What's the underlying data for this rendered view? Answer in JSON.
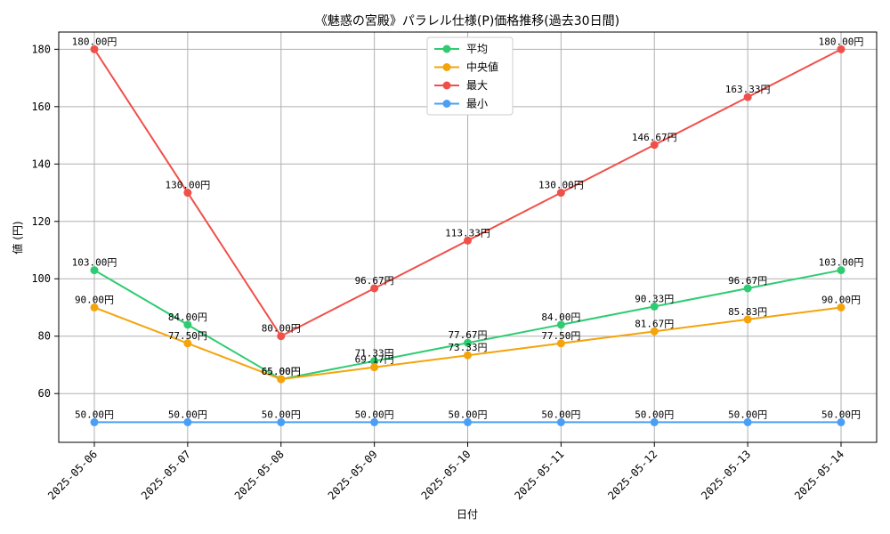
{
  "chart_data": {
    "type": "line",
    "title": "《魅惑の宮殿》パラレル仕様(P)価格推移(過去30日間)",
    "xlabel": "日付",
    "ylabel": "値 (円)",
    "value_suffix": "円",
    "categories": [
      "2025-05-06",
      "2025-05-07",
      "2025-05-08",
      "2025-05-09",
      "2025-05-10",
      "2025-05-11",
      "2025-05-12",
      "2025-05-13",
      "2025-05-14"
    ],
    "ylim": [
      43,
      186
    ],
    "yticks": [
      60,
      80,
      100,
      120,
      140,
      160,
      180
    ],
    "grid": true,
    "legend_position": "top-center",
    "series": [
      {
        "name": "平均",
        "color": "#2ecc71",
        "values": [
          103.0,
          84.0,
          65.0,
          71.33,
          77.67,
          84.0,
          90.33,
          96.67,
          103.0
        ]
      },
      {
        "name": "中央値",
        "color": "#f5a30a",
        "values": [
          90.0,
          77.5,
          65.0,
          69.17,
          73.33,
          77.5,
          81.67,
          85.83,
          90.0
        ]
      },
      {
        "name": "最大",
        "color": "#f0504a",
        "values": [
          180.0,
          130.0,
          80.0,
          96.67,
          113.33,
          130.0,
          146.67,
          163.33,
          180.0
        ]
      },
      {
        "name": "最小",
        "color": "#4a9ff5",
        "values": [
          50.0,
          50.0,
          50.0,
          50.0,
          50.0,
          50.0,
          50.0,
          50.0,
          50.0
        ]
      }
    ]
  }
}
